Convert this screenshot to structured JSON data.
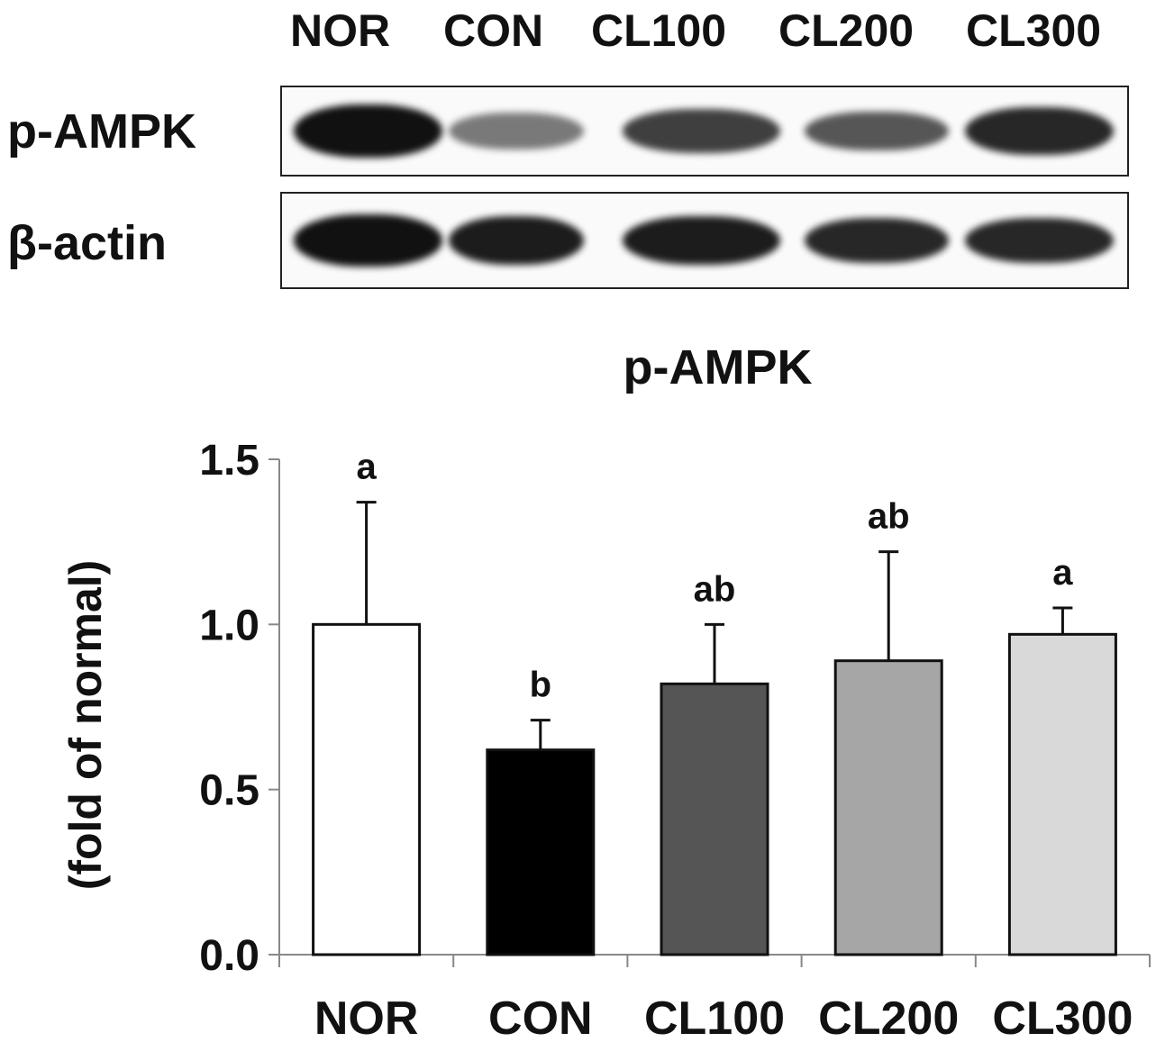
{
  "blot": {
    "lanes": [
      "NOR",
      "CON",
      "CL100",
      "CL200",
      "CL300"
    ],
    "rows": [
      {
        "label": "p-AMPK",
        "intensity": [
          1.0,
          0.55,
          0.8,
          0.7,
          0.9
        ],
        "band_height": [
          0.6,
          0.42,
          0.5,
          0.45,
          0.55
        ]
      },
      {
        "label": "β-actin",
        "intensity": [
          1.0,
          0.95,
          0.95,
          0.9,
          0.9
        ],
        "band_height": [
          0.55,
          0.52,
          0.52,
          0.48,
          0.48
        ]
      }
    ]
  },
  "chart_data": {
    "type": "bar",
    "title": "p-AMPK",
    "ylabel": "(fold of normal)",
    "xlabel": "",
    "categories": [
      "NOR",
      "CON",
      "CL100",
      "CL200",
      "CL300"
    ],
    "values": [
      1.0,
      0.62,
      0.82,
      0.89,
      0.97
    ],
    "errors": [
      0.37,
      0.09,
      0.18,
      0.33,
      0.08
    ],
    "significance_labels": [
      "a",
      "b",
      "ab",
      "ab",
      "a"
    ],
    "bar_colors": [
      "#ffffff",
      "#000000",
      "#555555",
      "#a6a6a6",
      "#d9d9d9"
    ],
    "ylim": [
      0,
      1.5
    ],
    "yticks": [
      "0.0",
      "0.5",
      "1.0",
      "1.5"
    ],
    "grid": false,
    "legend": "none"
  }
}
